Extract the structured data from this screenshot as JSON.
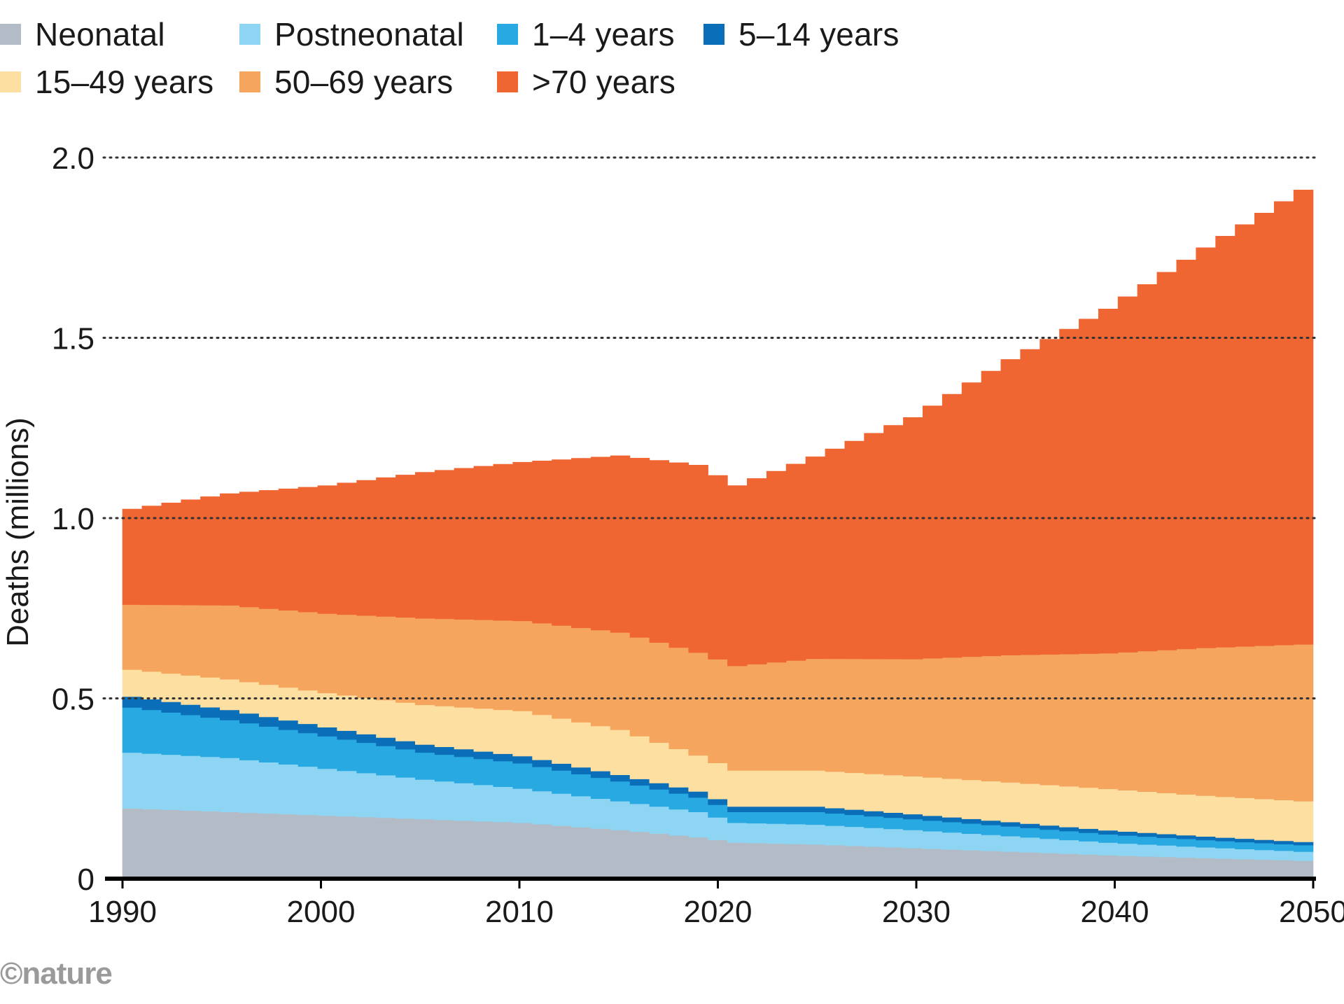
{
  "chart_data": {
    "type": "area",
    "stacked": true,
    "title": "",
    "xlabel": "",
    "ylabel": "Deaths (millions)",
    "xlim": [
      1990,
      2050
    ],
    "ylim": [
      0,
      2.0
    ],
    "x": [
      1990,
      1995,
      2000,
      2005,
      2010,
      2015,
      2019,
      2021,
      2025,
      2030,
      2035,
      2040,
      2045,
      2050
    ],
    "x_ticks": [
      "1990",
      "2000",
      "2010",
      "2020",
      "2030",
      "2040",
      "2050"
    ],
    "x_tick_values": [
      1990,
      2000,
      2010,
      2020,
      2030,
      2040,
      2050
    ],
    "y_ticks": [
      "0",
      "0.5",
      "1.0",
      "1.5",
      "2.0"
    ],
    "y_tick_values": [
      0,
      0.5,
      1.0,
      1.5,
      2.0
    ],
    "gridlines": "dotted-horizontal",
    "legend_position": "top-left",
    "series": [
      {
        "name": "Neonatal",
        "color": "#b3bcc6",
        "values": [
          0.195,
          0.185,
          0.175,
          0.165,
          0.155,
          0.135,
          0.115,
          0.1,
          0.095,
          0.085,
          0.075,
          0.065,
          0.057,
          0.05
        ]
      },
      {
        "name": "Postneonatal",
        "color": "#8ed5f3",
        "values": [
          0.155,
          0.15,
          0.13,
          0.11,
          0.095,
          0.08,
          0.07,
          0.055,
          0.055,
          0.05,
          0.043,
          0.035,
          0.03,
          0.025
        ]
      },
      {
        "name": "1–4 years",
        "color": "#29a9e1",
        "values": [
          0.125,
          0.105,
          0.09,
          0.075,
          0.07,
          0.055,
          0.04,
          0.03,
          0.035,
          0.03,
          0.027,
          0.023,
          0.02,
          0.018
        ]
      },
      {
        "name": "5–14 years",
        "color": "#0a6fb8",
        "values": [
          0.03,
          0.028,
          0.025,
          0.022,
          0.02,
          0.018,
          0.017,
          0.015,
          0.015,
          0.014,
          0.012,
          0.011,
          0.01,
          0.009
        ]
      },
      {
        "name": "15–49 years",
        "color": "#fddfa1",
        "values": [
          0.075,
          0.085,
          0.095,
          0.11,
          0.125,
          0.125,
          0.1,
          0.1,
          0.1,
          0.105,
          0.11,
          0.115,
          0.113,
          0.113
        ]
      },
      {
        "name": "50–69 years",
        "color": "#f5a55e",
        "values": [
          0.18,
          0.205,
          0.22,
          0.24,
          0.25,
          0.27,
          0.285,
          0.29,
          0.31,
          0.325,
          0.353,
          0.376,
          0.41,
          0.435
        ]
      },
      {
        "name": ">70 years",
        "color": "#ef6633",
        "values": [
          0.265,
          0.31,
          0.355,
          0.405,
          0.44,
          0.49,
          0.52,
          0.5,
          0.56,
          0.67,
          0.82,
          0.955,
          1.11,
          1.26
        ]
      }
    ]
  },
  "legend": {
    "items": [
      {
        "label": "Neonatal",
        "color": "#b3bcc6"
      },
      {
        "label": "Postneonatal",
        "color": "#8ed5f3"
      },
      {
        "label": "1–4 years",
        "color": "#29a9e1"
      },
      {
        "label": "5–14 years",
        "color": "#0a6fb8"
      },
      {
        "label": "15–49 years",
        "color": "#fddfa1"
      },
      {
        "label": "50–69 years",
        "color": "#f5a55e"
      },
      {
        "label": ">70 years",
        "color": "#ef6633"
      }
    ]
  },
  "credit": "©nature"
}
